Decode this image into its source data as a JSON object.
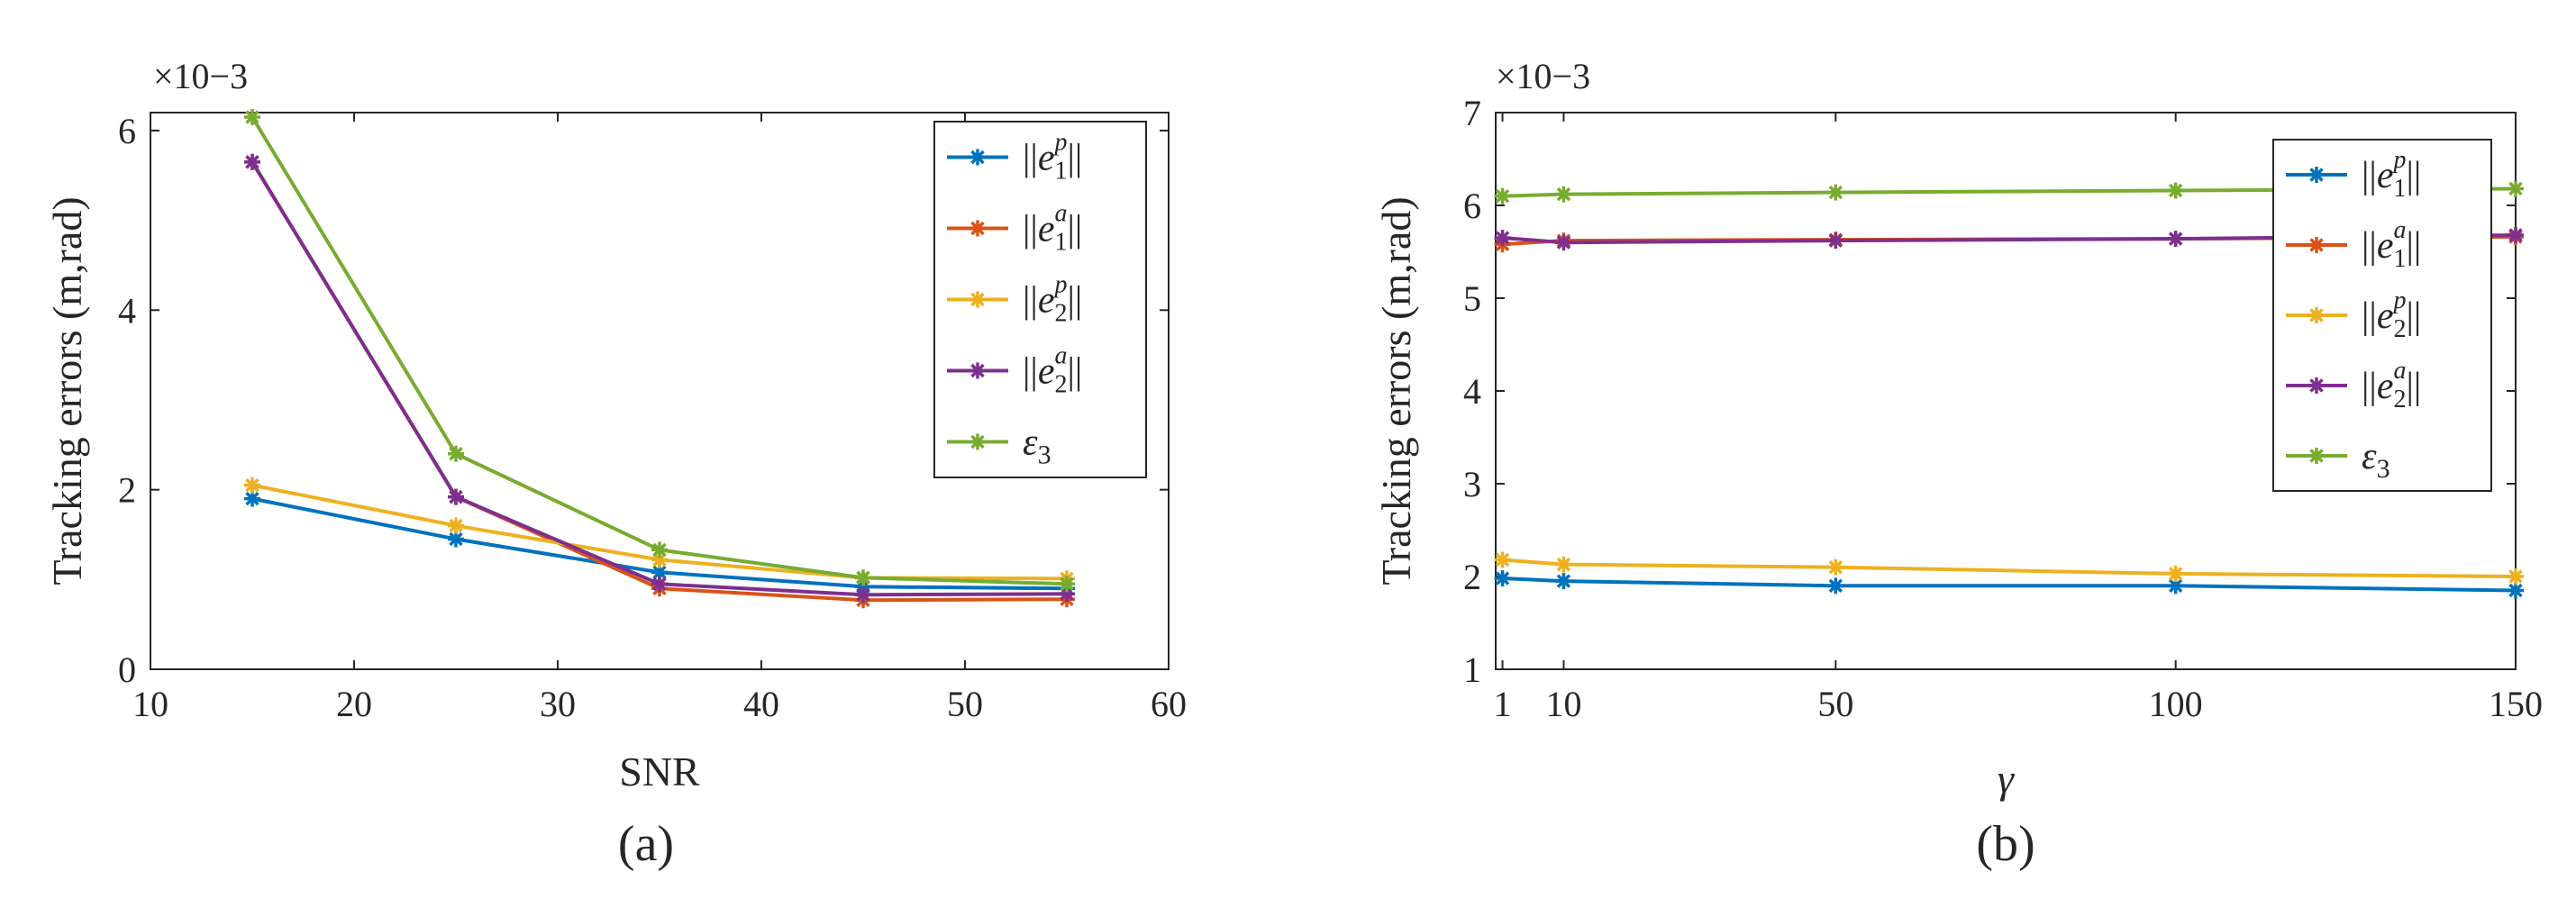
{
  "chart_data": [
    {
      "type": "line",
      "caption": "(a)",
      "xlabel": "SNR",
      "ylabel": "Tracking errors (m,rad)",
      "y_exponent": "×10−3",
      "xlim": [
        10,
        60
      ],
      "ylim": [
        0,
        6.2
      ],
      "xticks": [
        10,
        20,
        30,
        40,
        50,
        60
      ],
      "yticks": [
        0,
        2,
        4,
        6
      ],
      "grid": false,
      "legend_position": "top-right",
      "x": [
        15,
        25,
        35,
        45,
        55
      ],
      "series": [
        {
          "name": "||e1p||",
          "color": "#0072BD",
          "values": [
            1.9,
            1.45,
            1.08,
            0.92,
            0.9
          ]
        },
        {
          "name": "||e1a||",
          "color": "#D95319",
          "values": [
            5.65,
            1.92,
            0.9,
            0.77,
            0.78
          ]
        },
        {
          "name": "||e2p||",
          "color": "#EDB120",
          "values": [
            2.05,
            1.6,
            1.22,
            1.02,
            1.01
          ]
        },
        {
          "name": "||e2a||",
          "color": "#7E2F8E",
          "values": [
            5.65,
            1.92,
            0.95,
            0.83,
            0.84
          ]
        },
        {
          "name": "ε3",
          "color": "#77AC30",
          "values": [
            6.15,
            2.4,
            1.33,
            1.02,
            0.95
          ]
        }
      ]
    },
    {
      "type": "line",
      "caption": "(b)",
      "xlabel": "γ",
      "ylabel": "Tracking errors (m,rad)",
      "y_exponent": "×10−3",
      "xlim": [
        0,
        150
      ],
      "ylim": [
        1,
        7
      ],
      "xticks": [
        1,
        10,
        50,
        100,
        150
      ],
      "yticks": [
        1,
        2,
        3,
        4,
        5,
        6,
        7
      ],
      "grid": false,
      "legend_position": "top-right",
      "x": [
        1,
        10,
        50,
        100,
        150
      ],
      "series": [
        {
          "name": "||e1p||",
          "color": "#0072BD",
          "values": [
            1.98,
            1.95,
            1.9,
            1.9,
            1.85
          ]
        },
        {
          "name": "||e1a||",
          "color": "#D95319",
          "values": [
            5.58,
            5.62,
            5.63,
            5.64,
            5.66
          ]
        },
        {
          "name": "||e2p||",
          "color": "#EDB120",
          "values": [
            2.18,
            2.13,
            2.1,
            2.03,
            2.0
          ]
        },
        {
          "name": "||e2a||",
          "color": "#7E2F8E",
          "values": [
            5.65,
            5.6,
            5.62,
            5.64,
            5.68
          ]
        },
        {
          "name": "ε3",
          "color": "#77AC30",
          "values": [
            6.1,
            6.12,
            6.14,
            6.16,
            6.18
          ]
        }
      ]
    }
  ]
}
